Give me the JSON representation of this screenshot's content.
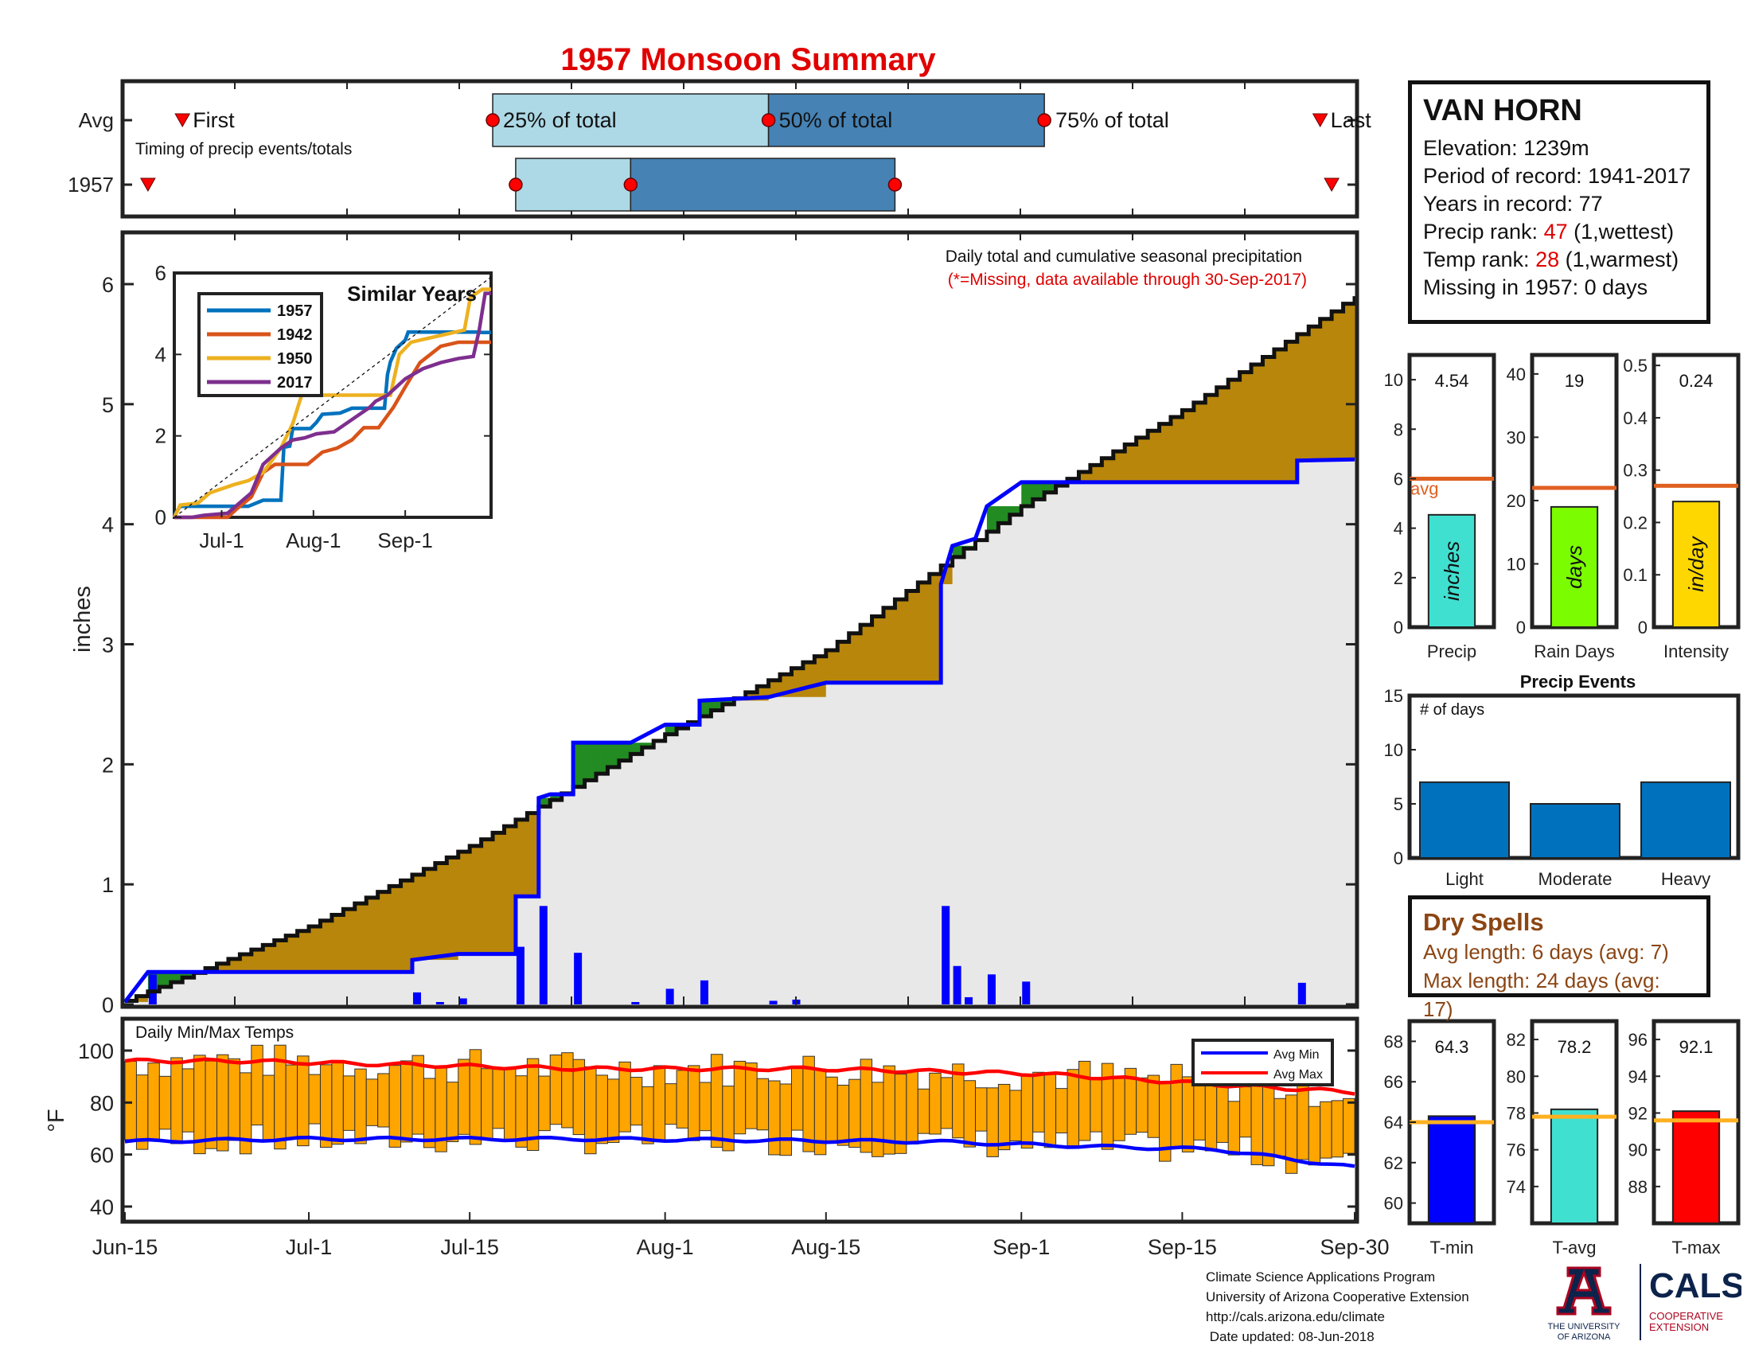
{
  "title": "1957 Monsoon Summary",
  "station": {
    "name": "VAN HORN",
    "elevation_label": "Elevation: 1239m",
    "period_label": "Period of record: 1941-2017",
    "years_label": "Years in record: 77",
    "precip_rank_prefix": "Precip rank: ",
    "precip_rank_value": "47",
    "precip_rank_suffix": " (1,wettest)",
    "temp_rank_prefix": "Temp rank: ",
    "temp_rank_value": "28",
    "temp_rank_suffix": " (1,warmest)",
    "missing_label": "Missing in 1957: 0 days"
  },
  "dry_spells": {
    "title": "Dry Spells",
    "avg_length": "Avg length: 6 days (avg: 7)",
    "max_length": "Max length: 24 days (avg: 17)"
  },
  "credits": {
    "line1": "Climate Science Applications Program",
    "line2": "University of Arizona Cooperative Extension",
    "line3": "http://cals.arizona.edu/climate",
    "line4": " Date updated: 08-Jun-2018"
  },
  "logos": {
    "ua_line1": "THE UNIVERSITY",
    "ua_line2": "OF ARIZONA",
    "cals": "CALS",
    "cals_line1": "COOPERATIVE",
    "cals_line2": "EXTENSION"
  },
  "colors": {
    "cumulative_fill": "#b8860b",
    "green_fill": "#228b22",
    "avg_fill": "#e8e8e8",
    "avg_line": "#0000ff",
    "daily_bar": "#0000ff",
    "temp_bar": "#ffa500",
    "avg_min_line": "#0000ff",
    "avg_max_line": "#ff0000",
    "timing_light": "#add8e6",
    "timing_dark": "#4682b4",
    "marker": "#ff0000",
    "avg_ref_line": "#e06020",
    "temp_ref_line": "#ffb020"
  },
  "chart_data": [
    {
      "id": "timing",
      "type": "bar",
      "title": "Timing of precip events/totals",
      "rows": [
        "Avg",
        "1957"
      ],
      "x_range": [
        "Jun-15",
        "Sep-30"
      ],
      "labels": {
        "first": "First",
        "p25": "25% of total",
        "p50": "50% of total",
        "p75": "75% of total",
        "last": "Last"
      },
      "avg": {
        "first": "Jun-20",
        "p25": "Jul-17",
        "p50": "Aug-10",
        "p75": "Sep-3",
        "last": "Sep-27"
      },
      "y1957": {
        "first": "Jun-17",
        "p25": "Jul-19",
        "p50": "Jul-29",
        "p75": "Aug-21",
        "last": "Sep-28"
      }
    },
    {
      "id": "cumulative",
      "type": "area",
      "title": "Daily total and cumulative seasonal precipitation",
      "subtitle": "(*=Missing, data available through 30-Sep-2017)",
      "ylabel": "inches",
      "ylim": [
        0,
        6.5
      ],
      "yticks": [
        0,
        1,
        2,
        3,
        4,
        5,
        6
      ],
      "x_range": [
        "Jun-15",
        "Sep-30"
      ],
      "xticks": [
        "Jun-15",
        "Jul-1",
        "Jul-15",
        "Aug-1",
        "Aug-15",
        "Sep-1",
        "Sep-15",
        "Sep-30"
      ],
      "series": [
        {
          "name": "1957 cumulative",
          "points": [
            [
              "Jun-15",
              0.02
            ],
            [
              "Jun-17",
              0.27
            ],
            [
              "Jul-1",
              0.27
            ],
            [
              "Jul-10",
              0.27
            ],
            [
              "Jul-10",
              0.37
            ],
            [
              "Jul-14",
              0.42
            ],
            [
              "Jul-19",
              0.42
            ],
            [
              "Jul-19",
              0.9
            ],
            [
              "Jul-21",
              0.9
            ],
            [
              "Jul-21",
              1.72
            ],
            [
              "Jul-22",
              1.75
            ],
            [
              "Jul-24",
              1.75
            ],
            [
              "Jul-24",
              2.18
            ],
            [
              "Jul-29",
              2.18
            ],
            [
              "Aug-1",
              2.33
            ],
            [
              "Aug-4",
              2.33
            ],
            [
              "Aug-4",
              2.53
            ],
            [
              "Aug-10",
              2.56
            ],
            [
              "Aug-15",
              2.68
            ],
            [
              "Aug-25",
              2.68
            ],
            [
              "Aug-25",
              3.5
            ],
            [
              "Aug-26",
              3.82
            ],
            [
              "Aug-28",
              3.88
            ],
            [
              "Aug-29",
              4.15
            ],
            [
              "Sep-1",
              4.35
            ],
            [
              "Sep-25",
              4.35
            ],
            [
              "Sep-25",
              4.53
            ],
            [
              "Sep-30",
              4.54
            ]
          ]
        },
        {
          "name": "avg cumulative",
          "points": [
            [
              "Jun-15",
              0.03
            ],
            [
              "Jul-1",
              0.65
            ],
            [
              "Jul-15",
              1.32
            ],
            [
              "Aug-1",
              2.25
            ],
            [
              "Aug-15",
              2.95
            ],
            [
              "Sep-1",
              4.15
            ],
            [
              "Sep-15",
              4.95
            ],
            [
              "Sep-30",
              5.9
            ]
          ]
        }
      ],
      "daily": [
        [
          "Jun-17",
          0.25
        ],
        [
          "Jul-10",
          0.1
        ],
        [
          "Jul-12",
          0.02
        ],
        [
          "Jul-14",
          0.05
        ],
        [
          "Jul-19",
          0.48
        ],
        [
          "Jul-21",
          0.82
        ],
        [
          "Jul-24",
          0.43
        ],
        [
          "Jul-29",
          0.02
        ],
        [
          "Aug-1",
          0.13
        ],
        [
          "Aug-4",
          0.2
        ],
        [
          "Aug-10",
          0.03
        ],
        [
          "Aug-12",
          0.04
        ],
        [
          "Aug-25",
          0.82
        ],
        [
          "Aug-26",
          0.32
        ],
        [
          "Aug-27",
          0.06
        ],
        [
          "Aug-29",
          0.25
        ],
        [
          "Sep-1",
          0.19
        ],
        [
          "Sep-25",
          0.18
        ]
      ]
    },
    {
      "id": "similar-years",
      "type": "line",
      "title": "Similar Years",
      "ylim": [
        0,
        6
      ],
      "yticks": [
        0,
        2,
        4,
        6
      ],
      "xticks": [
        "Jul-1",
        "Aug-1",
        "Sep-1"
      ],
      "series": [
        {
          "name": "1957",
          "color": "#0072bd",
          "values": [
            [
              0,
              0.05
            ],
            [
              2,
              0.27
            ],
            [
              25,
              0.27
            ],
            [
              30,
              0.42
            ],
            [
              36,
              0.42
            ],
            [
              37,
              1.72
            ],
            [
              39,
              1.75
            ],
            [
              40,
              2.18
            ],
            [
              46,
              2.18
            ],
            [
              48,
              2.33
            ],
            [
              50,
              2.53
            ],
            [
              56,
              2.56
            ],
            [
              60,
              2.68
            ],
            [
              71,
              2.68
            ],
            [
              72,
              3.5
            ],
            [
              73,
              3.82
            ],
            [
              75,
              4.15
            ],
            [
              78,
              4.35
            ],
            [
              79,
              4.55
            ],
            [
              102,
              4.55
            ],
            [
              104,
              4.54
            ],
            [
              107,
              4.54
            ]
          ]
        },
        {
          "name": "1942",
          "color": "#d95319",
          "values": [
            [
              0,
              0.0
            ],
            [
              18,
              0.0
            ],
            [
              21,
              0.2
            ],
            [
              26,
              0.5
            ],
            [
              30,
              1.1
            ],
            [
              34,
              1.3
            ],
            [
              45,
              1.3
            ],
            [
              50,
              1.6
            ],
            [
              55,
              1.7
            ],
            [
              60,
              1.9
            ],
            [
              64,
              2.2
            ],
            [
              69,
              2.2
            ],
            [
              74,
              2.7
            ],
            [
              78,
              3.2
            ],
            [
              83,
              3.8
            ],
            [
              90,
              4.2
            ],
            [
              96,
              4.3
            ],
            [
              107,
              4.3
            ]
          ]
        },
        {
          "name": "1950",
          "color": "#edb120",
          "values": [
            [
              0,
              0.0
            ],
            [
              2,
              0.3
            ],
            [
              8,
              0.35
            ],
            [
              12,
              0.6
            ],
            [
              20,
              0.8
            ],
            [
              25,
              0.9
            ],
            [
              30,
              1.1
            ],
            [
              36,
              1.7
            ],
            [
              40,
              2.3
            ],
            [
              43,
              3.0
            ],
            [
              46,
              3.0
            ],
            [
              50,
              3.0
            ],
            [
              70,
              3.0
            ],
            [
              73,
              3.0
            ],
            [
              76,
              4.0
            ],
            [
              80,
              4.3
            ],
            [
              86,
              4.4
            ],
            [
              92,
              4.5
            ],
            [
              98,
              4.6
            ],
            [
              100,
              5.4
            ],
            [
              102,
              5.5
            ],
            [
              104,
              5.6
            ],
            [
              107,
              5.6
            ]
          ]
        },
        {
          "name": "2017",
          "color": "#7e2f8e",
          "values": [
            [
              0,
              0.0
            ],
            [
              6,
              0.0
            ],
            [
              10,
              0.05
            ],
            [
              18,
              0.1
            ],
            [
              22,
              0.35
            ],
            [
              26,
              0.6
            ],
            [
              30,
              1.3
            ],
            [
              33,
              1.5
            ],
            [
              36,
              1.7
            ],
            [
              40,
              1.9
            ],
            [
              44,
              1.95
            ],
            [
              48,
              2.05
            ],
            [
              54,
              2.1
            ],
            [
              58,
              2.3
            ],
            [
              62,
              2.5
            ],
            [
              66,
              2.7
            ],
            [
              68,
              2.85
            ],
            [
              72,
              3.0
            ],
            [
              78,
              3.4
            ],
            [
              84,
              3.65
            ],
            [
              90,
              3.8
            ],
            [
              96,
              3.9
            ],
            [
              101,
              3.95
            ],
            [
              103,
              4.6
            ],
            [
              105,
              5.5
            ],
            [
              107,
              5.5
            ]
          ]
        },
        {
          "name": "avg",
          "dashed": true,
          "values": [
            [
              0,
              0.0
            ],
            [
              107,
              5.9
            ]
          ]
        }
      ]
    },
    {
      "id": "precip-total",
      "type": "bar",
      "xlabel": "Precip",
      "ylim": [
        0,
        11
      ],
      "yticks": [
        0,
        2,
        4,
        6,
        8,
        10
      ],
      "value": 4.54,
      "value_label": "4.54",
      "avg": 6.0,
      "avg_label": "avg",
      "bar_label": "inches",
      "color": "#40e0d0"
    },
    {
      "id": "rain-days",
      "type": "bar",
      "xlabel": "Rain Days",
      "ylim": [
        0,
        43
      ],
      "yticks": [
        0,
        10,
        20,
        30,
        40
      ],
      "value": 19,
      "value_label": "19",
      "avg": 22,
      "bar_label": "days",
      "color": "#7cfc00"
    },
    {
      "id": "intensity",
      "type": "bar",
      "xlabel": "Intensity",
      "ylim": [
        0,
        0.52
      ],
      "yticks": [
        "0",
        "0.1",
        "0.2",
        "0.3",
        "0.4",
        "0.5"
      ],
      "value": 0.24,
      "value_label": "0.24",
      "avg": 0.27,
      "bar_label": "in/day",
      "color": "#ffd700"
    },
    {
      "id": "precip-events",
      "type": "bar",
      "title": "Precip Events",
      "ylabel": "# of days",
      "ylim": [
        0,
        15
      ],
      "yticks": [
        0,
        5,
        10,
        15
      ],
      "categories": [
        "Light",
        "Moderate",
        "Heavy"
      ],
      "values": [
        7,
        5,
        7
      ],
      "color": "#0072bd"
    },
    {
      "id": "daily-temps",
      "type": "bar",
      "title": "Daily Min/Max Temps",
      "ylabel": "°F",
      "ylim": [
        33,
        109
      ],
      "yticks": [
        40,
        60,
        80,
        100
      ],
      "legend": [
        "Avg Min",
        "Avg Max"
      ],
      "legend_position": "top-right",
      "avg_min": [
        [
          0,
          65
        ],
        [
          15,
          66
        ],
        [
          40,
          66
        ],
        [
          70,
          65
        ],
        [
          85,
          63
        ],
        [
          95,
          62
        ],
        [
          107,
          55
        ]
      ],
      "avg_max": [
        [
          0,
          96
        ],
        [
          10,
          96
        ],
        [
          20,
          95
        ],
        [
          40,
          93
        ],
        [
          60,
          93
        ],
        [
          80,
          91
        ],
        [
          95,
          87
        ],
        [
          107,
          84
        ]
      ]
    },
    {
      "id": "tmin",
      "type": "bar",
      "xlabel": "T-min",
      "ylim": [
        59,
        69
      ],
      "yticks": [
        60,
        62,
        64,
        66,
        68
      ],
      "value": 64.3,
      "value_label": "64.3",
      "avg": 64.0,
      "color": "#0000ff"
    },
    {
      "id": "tavg",
      "type": "bar",
      "xlabel": "T-avg",
      "ylim": [
        72,
        83
      ],
      "yticks": [
        74,
        76,
        78,
        80,
        82
      ],
      "value": 78.2,
      "value_label": "78.2",
      "avg": 77.8,
      "color": "#40e0d0"
    },
    {
      "id": "tmax",
      "type": "bar",
      "xlabel": "T-max",
      "ylim": [
        86,
        97
      ],
      "yticks": [
        88,
        90,
        92,
        94,
        96
      ],
      "value": 92.1,
      "value_label": "92.1",
      "avg": 91.6,
      "color": "#ff0000"
    }
  ]
}
